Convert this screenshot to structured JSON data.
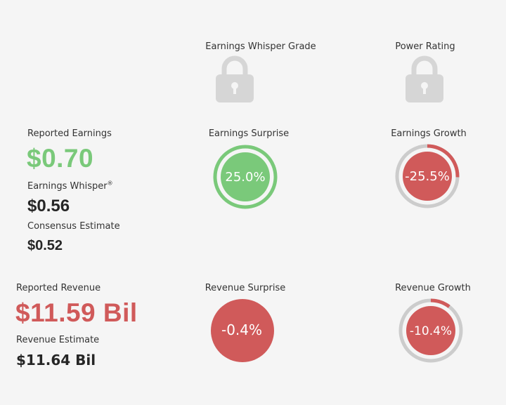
{
  "grades": {
    "whisper_grade_label": "Earnings Whisper Grade",
    "power_rating_label": "Power Rating",
    "lock_icon": "lock-icon"
  },
  "earnings": {
    "reported_label": "Reported Earnings",
    "reported_value": "$0.70",
    "whisper_label": "Earnings Whisper",
    "whisper_mark": "®",
    "whisper_value": "$0.56",
    "consensus_label": "Consensus Estimate",
    "consensus_value": "$0.52",
    "surprise_label": "Earnings Surprise",
    "surprise_value": "25.0%",
    "surprise_fraction": 1.0,
    "growth_label": "Earnings Growth",
    "growth_value": "-25.5%",
    "growth_fraction": 0.255
  },
  "revenue": {
    "reported_label": "Reported Revenue",
    "reported_value": "$11.59 Bil",
    "estimate_label": "Revenue Estimate",
    "estimate_value": "$11.64 Bil",
    "surprise_label": "Revenue Surprise",
    "surprise_value": "-0.4%",
    "growth_label": "Revenue Growth",
    "growth_value": "-10.4%",
    "growth_fraction": 0.104
  },
  "colors": {
    "positive": "#7ac97a",
    "negative": "#d05a5a",
    "ring_track": "#cccccc",
    "lock": "#d6d6d6"
  }
}
